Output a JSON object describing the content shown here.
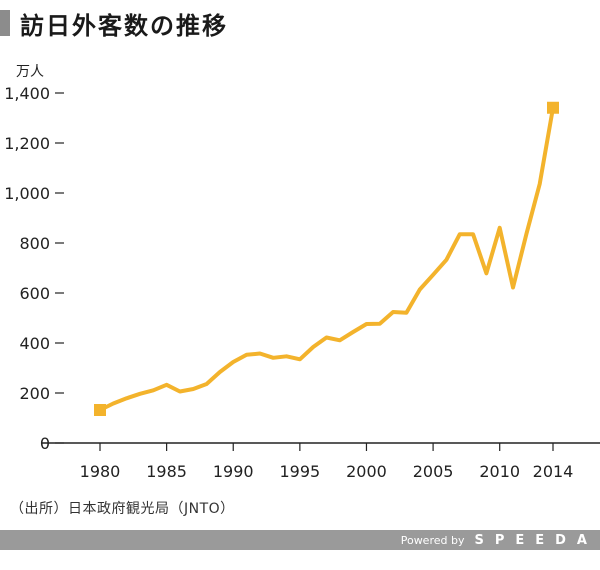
{
  "title": "訪日外客数の推移",
  "source": "（出所）日本政府観光局（JNTO）",
  "footer": {
    "powered": "Powered by",
    "brand": "SPEEDA"
  },
  "colors": {
    "line": "#F3B32C",
    "axis": "#222222",
    "title_bar": "#8c8c8c",
    "footer_bg": "#9a9a9a"
  },
  "chart_data": {
    "type": "line",
    "ylabel": "万人",
    "xlabel": "",
    "ylim": [
      0,
      1400
    ],
    "xlim": [
      1976,
      2018
    ],
    "yticks": [
      0,
      200,
      400,
      600,
      800,
      1000,
      1200,
      1400
    ],
    "ytick_labels": [
      "0",
      "200",
      "400",
      "600",
      "800",
      "1,000",
      "1,200",
      "1,400"
    ],
    "xticks": [
      1980,
      1985,
      1990,
      1995,
      2000,
      2005,
      2010,
      2014
    ],
    "xtick_labels": [
      "1980",
      "1985",
      "1990",
      "1995",
      "2000",
      "2005",
      "2010",
      "2014"
    ],
    "grid": false,
    "series": [
      {
        "x": [
          1980,
          1981,
          1982,
          1983,
          1984,
          1985,
          1986,
          1987,
          1988,
          1989,
          1990,
          1991,
          1992,
          1993,
          1994,
          1995,
          1996,
          1997,
          1998,
          1999,
          2000,
          2001,
          2002,
          2003,
          2004,
          2005,
          2006,
          2007,
          2008,
          2009,
          2010,
          2011,
          2012,
          2013,
          2014
        ],
        "values": [
          132,
          158,
          179,
          197,
          211,
          233,
          206,
          216,
          236,
          284,
          324,
          353,
          358,
          341,
          347,
          335,
          384,
          422,
          411,
          444,
          476,
          477,
          524,
          521,
          614,
          673,
          733,
          835,
          835,
          679,
          861,
          622,
          836,
          1036,
          1341
        ],
        "markers_at": [
          0,
          34
        ]
      }
    ]
  }
}
